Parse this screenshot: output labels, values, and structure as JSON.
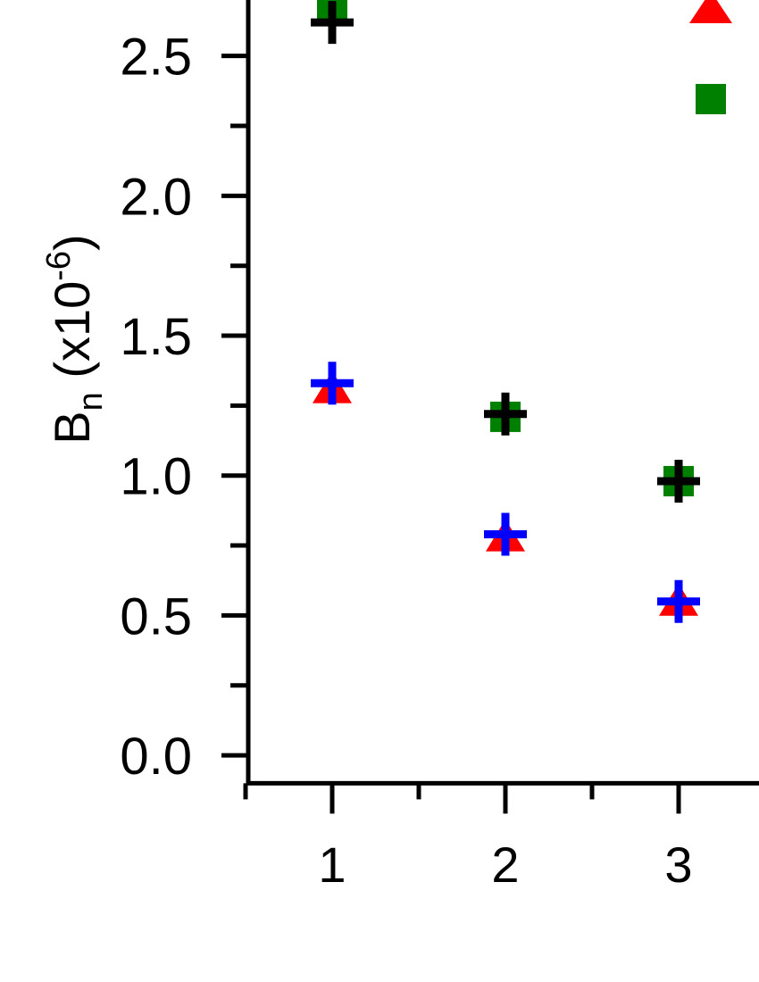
{
  "chart_data": {
    "type": "scatter",
    "ylabel_parts": [
      "B",
      "n",
      " (x10",
      "-6",
      ")"
    ],
    "x": [
      1,
      2,
      3
    ],
    "series": [
      {
        "color": "#008000",
        "marker": "square",
        "values": [
          2.67,
          1.21,
          0.98
        ]
      },
      {
        "color": "#000000",
        "marker": "plus",
        "values": [
          2.62,
          1.22,
          0.98
        ]
      },
      {
        "color": "#ff0000",
        "marker": "triangle",
        "values": [
          1.31,
          0.78,
          0.55
        ]
      },
      {
        "color": "#0000ff",
        "marker": "plus",
        "values": [
          1.33,
          0.79,
          0.55
        ]
      }
    ],
    "xlim": [
      0.5,
      3.5
    ],
    "xticks": [
      1,
      2,
      3
    ],
    "xminorticks": [
      0.5,
      1.5,
      2.5
    ],
    "ylim": [
      -0.1,
      2.7
    ],
    "yticks": [
      {
        "value": 0,
        "label": "0.0"
      },
      0.5,
      {
        "value": 1,
        "label": "1.0"
      },
      1.5,
      {
        "value": 2,
        "label": "2.0"
      },
      2.5
    ],
    "yminorticks": [
      0.25,
      0.75,
      1.25,
      1.75,
      2.25
    ]
  }
}
